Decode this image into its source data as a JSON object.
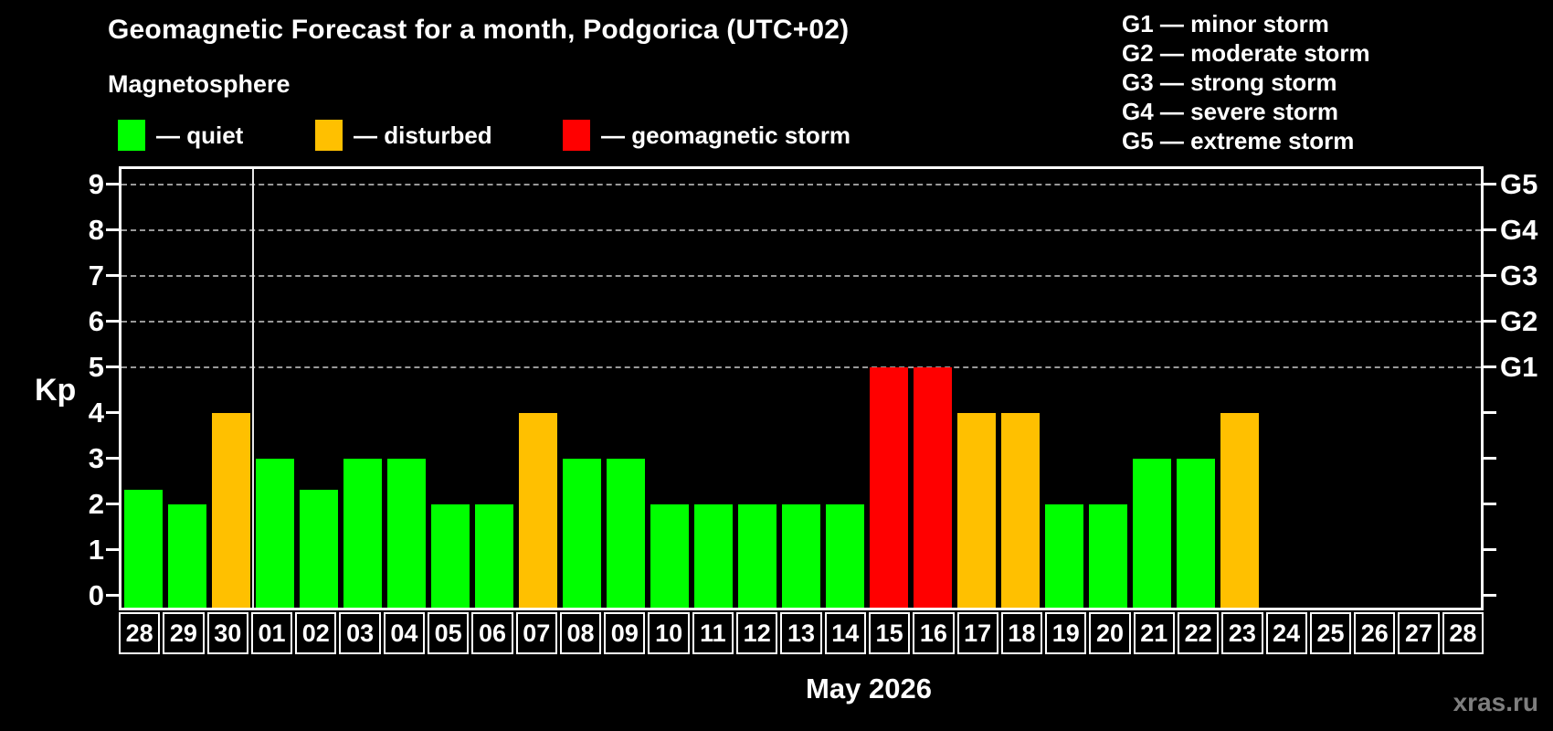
{
  "header": {
    "title": "Geomagnetic Forecast for a month, Podgorica (UTC+02)",
    "subtitle": "Magnetosphere"
  },
  "legend": {
    "items": [
      {
        "key": "quiet",
        "label": "— quiet",
        "color": "#00ff00",
        "x": 129
      },
      {
        "key": "disturbed",
        "label": "— disturbed",
        "color": "#ffc000",
        "x": 345
      },
      {
        "key": "storm",
        "label": "— geomagnetic storm",
        "color": "#ff0000",
        "x": 616
      }
    ]
  },
  "g_scale_legend": {
    "items": [
      "G1 — minor storm",
      "G2 — moderate storm",
      "G3 — strong storm",
      "G4 — severe storm",
      "G5 — extreme storm"
    ]
  },
  "footer": {
    "xlabel": "May 2026",
    "watermark": "xras.ru"
  },
  "chart_data": {
    "type": "bar",
    "title": "Geomagnetic Forecast for a month, Podgorica (UTC+02)",
    "xlabel": "May 2026",
    "ylabel": "Kp",
    "ylim": [
      0,
      9.4
    ],
    "yticks": [
      0,
      1,
      2,
      3,
      4,
      5,
      6,
      7,
      8,
      9
    ],
    "gridlines_at": [
      5,
      6,
      7,
      8,
      9
    ],
    "grid": "dashed-horizontal",
    "legend_position": "top-left",
    "right_axis": [
      {
        "kp": 5,
        "label": "G1"
      },
      {
        "kp": 6,
        "label": "G2"
      },
      {
        "kp": 7,
        "label": "G3"
      },
      {
        "kp": 8,
        "label": "G4"
      },
      {
        "kp": 9,
        "label": "G5"
      }
    ],
    "month_separator_after_index": 2,
    "state_colors": {
      "quiet": "#00ff00",
      "disturbed": "#ffc000",
      "storm": "#ff0000"
    },
    "categories": [
      "28",
      "29",
      "30",
      "01",
      "02",
      "03",
      "04",
      "05",
      "06",
      "07",
      "08",
      "09",
      "10",
      "11",
      "12",
      "13",
      "14",
      "15",
      "16",
      "17",
      "18",
      "19",
      "20",
      "21",
      "22",
      "23",
      "24",
      "25",
      "26",
      "27",
      "28"
    ],
    "series": [
      {
        "name": "Kp forecast",
        "values": [
          2.33,
          2,
          4,
          3,
          2.33,
          3,
          3,
          2,
          2,
          4,
          3,
          3,
          2,
          2,
          2,
          2,
          2,
          5,
          5,
          4,
          4,
          2,
          2,
          3,
          3,
          4,
          null,
          null,
          null,
          null,
          null
        ],
        "states": [
          "quiet",
          "quiet",
          "disturbed",
          "quiet",
          "quiet",
          "quiet",
          "quiet",
          "quiet",
          "quiet",
          "disturbed",
          "quiet",
          "quiet",
          "quiet",
          "quiet",
          "quiet",
          "quiet",
          "quiet",
          "storm",
          "storm",
          "disturbed",
          "disturbed",
          "quiet",
          "quiet",
          "quiet",
          "quiet",
          "disturbed",
          null,
          null,
          null,
          null,
          null
        ]
      }
    ]
  }
}
